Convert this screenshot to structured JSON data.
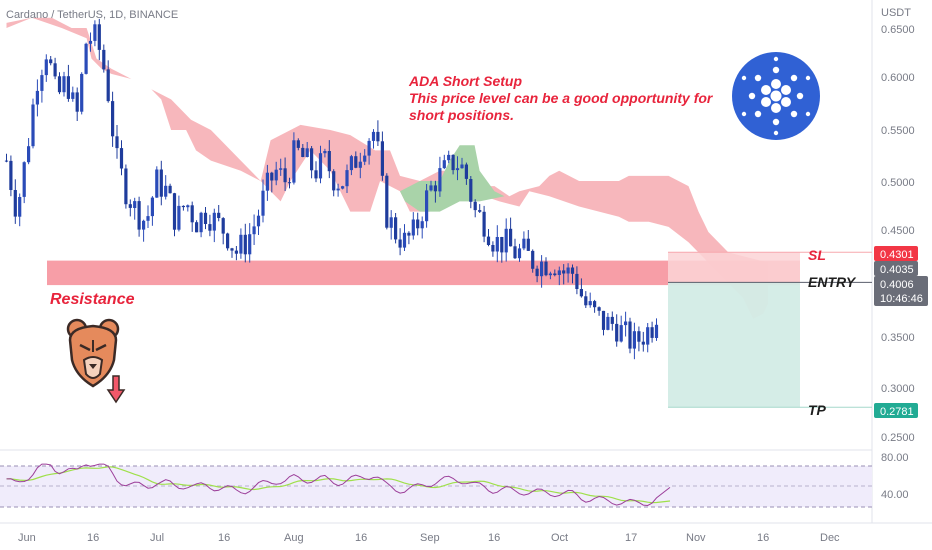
{
  "header": {
    "symbol": "Cardano / TetherUS, 1D, BINANCE"
  },
  "price_axis": {
    "unit": "USDT",
    "ticks": [
      "0.6500",
      "0.6000",
      "0.5500",
      "0.5000",
      "0.4500",
      "0.3500",
      "0.3000",
      "0.2500"
    ],
    "tags": {
      "sl": "0.4301",
      "last": "0.4035",
      "current": "0.4006",
      "countdown": "10:46:46",
      "tp": "0.2781"
    }
  },
  "rsi_axis": {
    "ticks": [
      "80.00",
      "40.00"
    ]
  },
  "time_axis": {
    "ticks": [
      "Jun",
      "16",
      "Jul",
      "16",
      "Aug",
      "16",
      "Sep",
      "16",
      "Oct",
      "17",
      "Nov",
      "16",
      "Dec"
    ]
  },
  "annotations": {
    "setup_title": "ADA Short Setup",
    "setup_line2": "This price level can be a good opportunity for",
    "setup_line3": "short positions.",
    "resistance": "Resistance",
    "sl": "SL",
    "entry": "ENTRY",
    "tp": "TP"
  },
  "colors": {
    "up_candle": "#2a4bb8",
    "annotation_red": "#e8243c",
    "resistance_band": "#f6969f",
    "cloud_bear": "#f7b3b8",
    "cloud_bull": "#a9d3a9",
    "target_zone": "#d3ece6",
    "stop_zone": "#fbd3d6",
    "cardano_blue": "#3061d4",
    "rsi_line": "#9c3f9a",
    "rsi_ma": "#9fe04a"
  },
  "icons": [
    "cardano-logo-icon",
    "bear-icon",
    "down-arrow-icon"
  ],
  "chart_data": {
    "type": "candlestick",
    "title": "ADA Short Setup",
    "y_range": [
      0.25,
      0.66
    ],
    "resistance_zone": [
      0.398,
      0.422
    ],
    "trade": {
      "stop_loss": 0.4301,
      "entry": 0.4006,
      "take_profit": 0.2781
    },
    "price_path": [
      [
        0.45,
        0.52
      ],
      [
        1.5,
        0.47
      ],
      [
        2.5,
        0.53
      ],
      [
        3.5,
        0.6
      ],
      [
        4.5,
        0.63
      ],
      [
        5.5,
        0.58
      ],
      [
        6.5,
        0.6
      ],
      [
        7.5,
        0.56
      ],
      [
        8.5,
        0.64
      ],
      [
        9.5,
        0.64
      ],
      [
        10.5,
        0.6
      ],
      [
        11.5,
        0.52
      ],
      [
        12.5,
        0.49
      ],
      [
        13.5,
        0.47
      ],
      [
        14.5,
        0.46
      ],
      [
        15.5,
        0.5
      ],
      [
        16.5,
        0.49
      ],
      [
        17.5,
        0.46
      ],
      [
        18.5,
        0.48
      ],
      [
        19.5,
        0.46
      ],
      [
        20.5,
        0.47
      ],
      [
        21.5,
        0.46
      ],
      [
        22.5,
        0.45
      ],
      [
        23.5,
        0.43
      ],
      [
        24.5,
        0.44
      ],
      [
        25.5,
        0.46
      ],
      [
        26.5,
        0.49
      ],
      [
        27.5,
        0.51
      ],
      [
        28.5,
        0.5
      ],
      [
        29.5,
        0.53
      ],
      [
        30.5,
        0.52
      ],
      [
        31.5,
        0.51
      ],
      [
        32.5,
        0.52
      ],
      [
        33.5,
        0.5
      ],
      [
        34.5,
        0.5
      ],
      [
        35.5,
        0.52
      ],
      [
        36.5,
        0.54
      ],
      [
        37.5,
        0.55
      ],
      [
        38.5,
        0.47
      ],
      [
        39.5,
        0.45
      ],
      [
        40.5,
        0.44
      ],
      [
        41.5,
        0.45
      ],
      [
        42.5,
        0.48
      ],
      [
        43.5,
        0.5
      ],
      [
        44.5,
        0.51
      ],
      [
        45.5,
        0.52
      ],
      [
        46.5,
        0.51
      ],
      [
        47.5,
        0.47
      ],
      [
        48.5,
        0.46
      ],
      [
        49.5,
        0.44
      ],
      [
        50.5,
        0.44
      ],
      [
        51.5,
        0.43
      ],
      [
        52.5,
        0.43
      ],
      [
        53.5,
        0.42
      ],
      [
        54.5,
        0.42
      ],
      [
        55.5,
        0.42
      ],
      [
        56.5,
        0.41
      ],
      [
        57.5,
        0.41
      ],
      [
        58.5,
        0.38
      ],
      [
        59.5,
        0.37
      ],
      [
        60.5,
        0.36
      ],
      [
        61.5,
        0.36
      ],
      [
        62.5,
        0.35
      ],
      [
        63.5,
        0.34
      ],
      [
        64.5,
        0.35
      ],
      [
        65.5,
        0.36
      ],
      [
        66.5,
        0.4
      ]
    ],
    "cloud_upper": [
      [
        0.45,
        0.65
      ],
      [
        3,
        0.66
      ],
      [
        5,
        0.66
      ],
      [
        7,
        0.65
      ],
      [
        8.5,
        0.65
      ],
      [
        9.5,
        0.62
      ],
      [
        11,
        0.61
      ],
      [
        13,
        0.6
      ],
      [
        15,
        0.59
      ],
      [
        16,
        0.58
      ],
      [
        17,
        0.55
      ],
      [
        18.5,
        0.55
      ],
      [
        19.5,
        0.53
      ],
      [
        21,
        0.52
      ],
      [
        24,
        0.51
      ],
      [
        26,
        0.5
      ],
      [
        27,
        0.54
      ],
      [
        30,
        0.555
      ],
      [
        33,
        0.55
      ],
      [
        35,
        0.545
      ],
      [
        37.5,
        0.53
      ],
      [
        39,
        0.53
      ],
      [
        40,
        0.505
      ],
      [
        42,
        0.5
      ],
      [
        44,
        0.51
      ],
      [
        46,
        0.51
      ],
      [
        48,
        0.495
      ],
      [
        49.5,
        0.495
      ],
      [
        51,
        0.485
      ],
      [
        52,
        0.49
      ],
      [
        54,
        0.495
      ],
      [
        55,
        0.505
      ],
      [
        56,
        0.51
      ],
      [
        58,
        0.5
      ],
      [
        62,
        0.5
      ],
      [
        63,
        0.505
      ],
      [
        67,
        0.505
      ],
      [
        69,
        0.495
      ],
      [
        70,
        0.47
      ],
      [
        71,
        0.45
      ],
      [
        73,
        0.43
      ],
      [
        75,
        0.425
      ],
      [
        77,
        0.42
      ]
    ],
    "cloud_lower": [
      [
        77,
        0.38
      ],
      [
        76.5,
        0.37
      ],
      [
        75.5,
        0.365
      ],
      [
        74.5,
        0.385
      ],
      [
        73,
        0.4
      ],
      [
        71,
        0.42
      ],
      [
        69,
        0.44
      ],
      [
        67,
        0.455
      ],
      [
        65,
        0.46
      ],
      [
        63,
        0.46
      ],
      [
        62,
        0.465
      ],
      [
        60,
        0.47
      ],
      [
        58,
        0.475
      ],
      [
        56.5,
        0.48
      ],
      [
        55,
        0.485
      ],
      [
        53,
        0.49
      ],
      [
        52,
        0.475
      ],
      [
        50,
        0.48
      ],
      [
        47,
        0.49
      ],
      [
        45,
        0.48
      ],
      [
        43,
        0.47
      ],
      [
        41,
        0.47
      ],
      [
        40,
        0.49
      ],
      [
        38,
        0.5
      ],
      [
        37,
        0.47
      ],
      [
        35,
        0.47
      ],
      [
        33,
        0.51
      ],
      [
        31,
        0.53
      ],
      [
        29,
        0.5
      ],
      [
        28,
        0.48
      ],
      [
        27,
        0.49
      ],
      [
        24,
        0.52
      ],
      [
        21,
        0.55
      ],
      [
        19,
        0.56
      ],
      [
        17,
        0.58
      ],
      [
        15,
        0.59
      ],
      [
        13,
        0.6
      ],
      [
        11,
        0.605
      ],
      [
        10,
        0.61
      ],
      [
        9,
        0.62
      ],
      [
        8.5,
        0.64
      ],
      [
        6,
        0.65
      ],
      [
        3,
        0.66
      ],
      [
        0.45,
        0.655
      ]
    ],
    "rsi": {
      "ticks": [
        80,
        40
      ],
      "last": 58
    }
  }
}
